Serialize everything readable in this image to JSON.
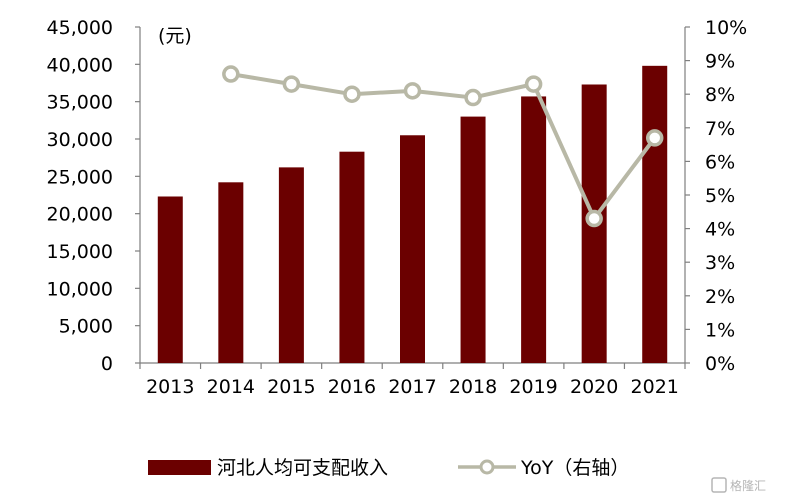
{
  "chart_data": {
    "type": "bar",
    "categories": [
      "2013",
      "2014",
      "2015",
      "2016",
      "2017",
      "2018",
      "2019",
      "2020",
      "2021"
    ],
    "series": [
      {
        "name": "河北人均可支配收入",
        "type": "bar",
        "axis": "left",
        "color": "#6b0000",
        "values": [
          22300,
          24200,
          26200,
          28300,
          30500,
          33000,
          35700,
          37300,
          39800
        ]
      },
      {
        "name": "YoY（右轴）",
        "type": "line",
        "axis": "right",
        "color": "#b8b8a6",
        "values": [
          null,
          8.6,
          8.3,
          8.0,
          8.1,
          7.9,
          8.3,
          4.3,
          6.7
        ]
      }
    ],
    "y_left": {
      "unit_label": "(元)",
      "ylim": [
        0,
        45000
      ],
      "ticks": [
        "0",
        "5,000",
        "10,000",
        "15,000",
        "20,000",
        "25,000",
        "30,000",
        "35,000",
        "40,000",
        "45,000"
      ]
    },
    "y_right": {
      "ylim": [
        0,
        10
      ],
      "ticks": [
        "0%",
        "1%",
        "2%",
        "3%",
        "4%",
        "5%",
        "6%",
        "7%",
        "8%",
        "9%",
        "10%"
      ]
    },
    "legend": {
      "position": "bottom",
      "items": [
        "河北人均可支配收入",
        "YoY（右轴）"
      ]
    },
    "grid": false
  },
  "watermark": "格隆汇",
  "watermark_icon": "gelonghui-logo-icon"
}
